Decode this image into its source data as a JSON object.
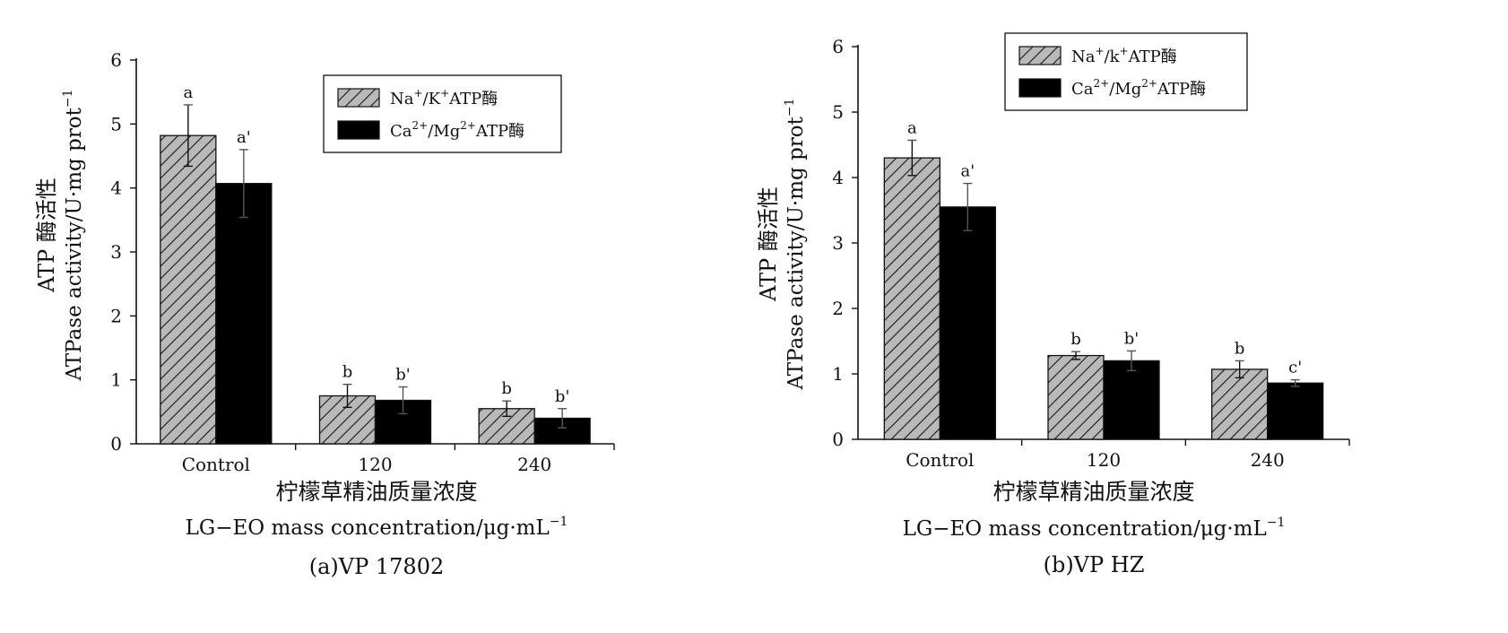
{
  "chart_data": [
    {
      "type": "bar",
      "caption": "(a)VP  17802",
      "ylabel_cn": "ATP 酶活性",
      "ylabel_en": "ATPase  activity/U·mg  prot",
      "ylabel_sup": "−1",
      "xlabel_cn": "柠檬草精油质量浓度",
      "xlabel_en": "LG−EO  mass  concentration/μg·mL",
      "xlabel_sup": "−1",
      "ylim": [
        0,
        6
      ],
      "yticks": [
        "0",
        "1",
        "2",
        "3",
        "4",
        "5",
        "6"
      ],
      "categories": [
        "Control",
        "120",
        "240"
      ],
      "series": [
        {
          "name": "Na+/K+ATP酶",
          "legend_base1": "Na",
          "legend_sup1": "+",
          "legend_mid": "/K",
          "legend_sup2": "+",
          "legend_tail": "ATP酶",
          "values": [
            4.82,
            0.75,
            0.55
          ],
          "errors": [
            0.48,
            0.18,
            0.12
          ],
          "letters": [
            "a",
            "b",
            "b"
          ]
        },
        {
          "name": "Ca2+/Mg2+ATP酶",
          "legend_base1": "Ca",
          "legend_sup1": "2+",
          "legend_mid": "/Mg",
          "legend_sup2": "2+",
          "legend_tail": "ATP酶",
          "values": [
            4.07,
            0.68,
            0.4
          ],
          "errors": [
            0.53,
            0.21,
            0.15
          ],
          "letters": [
            "a'",
            "b'",
            "b'"
          ]
        }
      ],
      "legend_position": "top-right"
    },
    {
      "type": "bar",
      "caption": "(b)VP  HZ",
      "ylabel_cn": "ATP 酶活性",
      "ylabel_en": "ATPase  activity/U·mg  prot",
      "ylabel_sup": "−1",
      "xlabel_cn": "柠檬草精油质量浓度",
      "xlabel_en": "LG−EO  mass  concentration/μg·mL",
      "xlabel_sup": "−1",
      "ylim": [
        0,
        6
      ],
      "yticks": [
        "0",
        "1",
        "2",
        "3",
        "4",
        "5",
        "6"
      ],
      "categories": [
        "Control",
        "120",
        "240"
      ],
      "series": [
        {
          "name": "Na+/k+ATP酶",
          "legend_base1": "Na",
          "legend_sup1": "+",
          "legend_mid": "/k",
          "legend_sup2": "+",
          "legend_tail": "ATP酶",
          "values": [
            4.3,
            1.28,
            1.07
          ],
          "errors": [
            0.27,
            0.06,
            0.13
          ],
          "letters": [
            "a",
            "b",
            "b"
          ]
        },
        {
          "name": "Ca2+/Mg2+ATP酶",
          "legend_base1": "Ca",
          "legend_sup1": "2+",
          "legend_mid": "/Mg",
          "legend_sup2": "2+",
          "legend_tail": "ATP酶",
          "values": [
            3.55,
            1.2,
            0.86
          ],
          "errors": [
            0.36,
            0.15,
            0.05
          ],
          "letters": [
            "a'",
            "b'",
            "c'"
          ]
        }
      ],
      "legend_position": "top-center"
    }
  ],
  "colors": {
    "series1_fill": "#b9b9b9",
    "series2_fill": "#000000",
    "axis": "#111111"
  }
}
